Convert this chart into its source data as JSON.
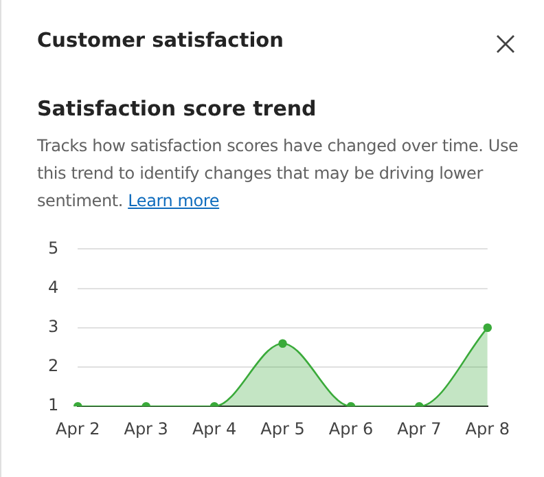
{
  "chart_data": {
    "type": "area",
    "title": "Customer satisfaction",
    "subtitle": "Satisfaction score trend",
    "annotations": [
      "Tracks how satisfaction scores have changed over time. Use this trend to identify changes that may be driving lower sentiment.",
      "Learn more"
    ],
    "categories": [
      "Apr 2",
      "Apr 3",
      "Apr 4",
      "Apr 5",
      "Apr 6",
      "Apr 7",
      "Apr 8"
    ],
    "series": [
      {
        "color": "#3aaa3a",
        "values": [
          1,
          1,
          1,
          2.6,
          1,
          1,
          3
        ]
      }
    ],
    "ylim": [
      1,
      5
    ],
    "yticks": [
      1,
      2,
      3,
      4,
      5
    ],
    "grid": "y",
    "legend": false,
    "marker": "circle"
  }
}
